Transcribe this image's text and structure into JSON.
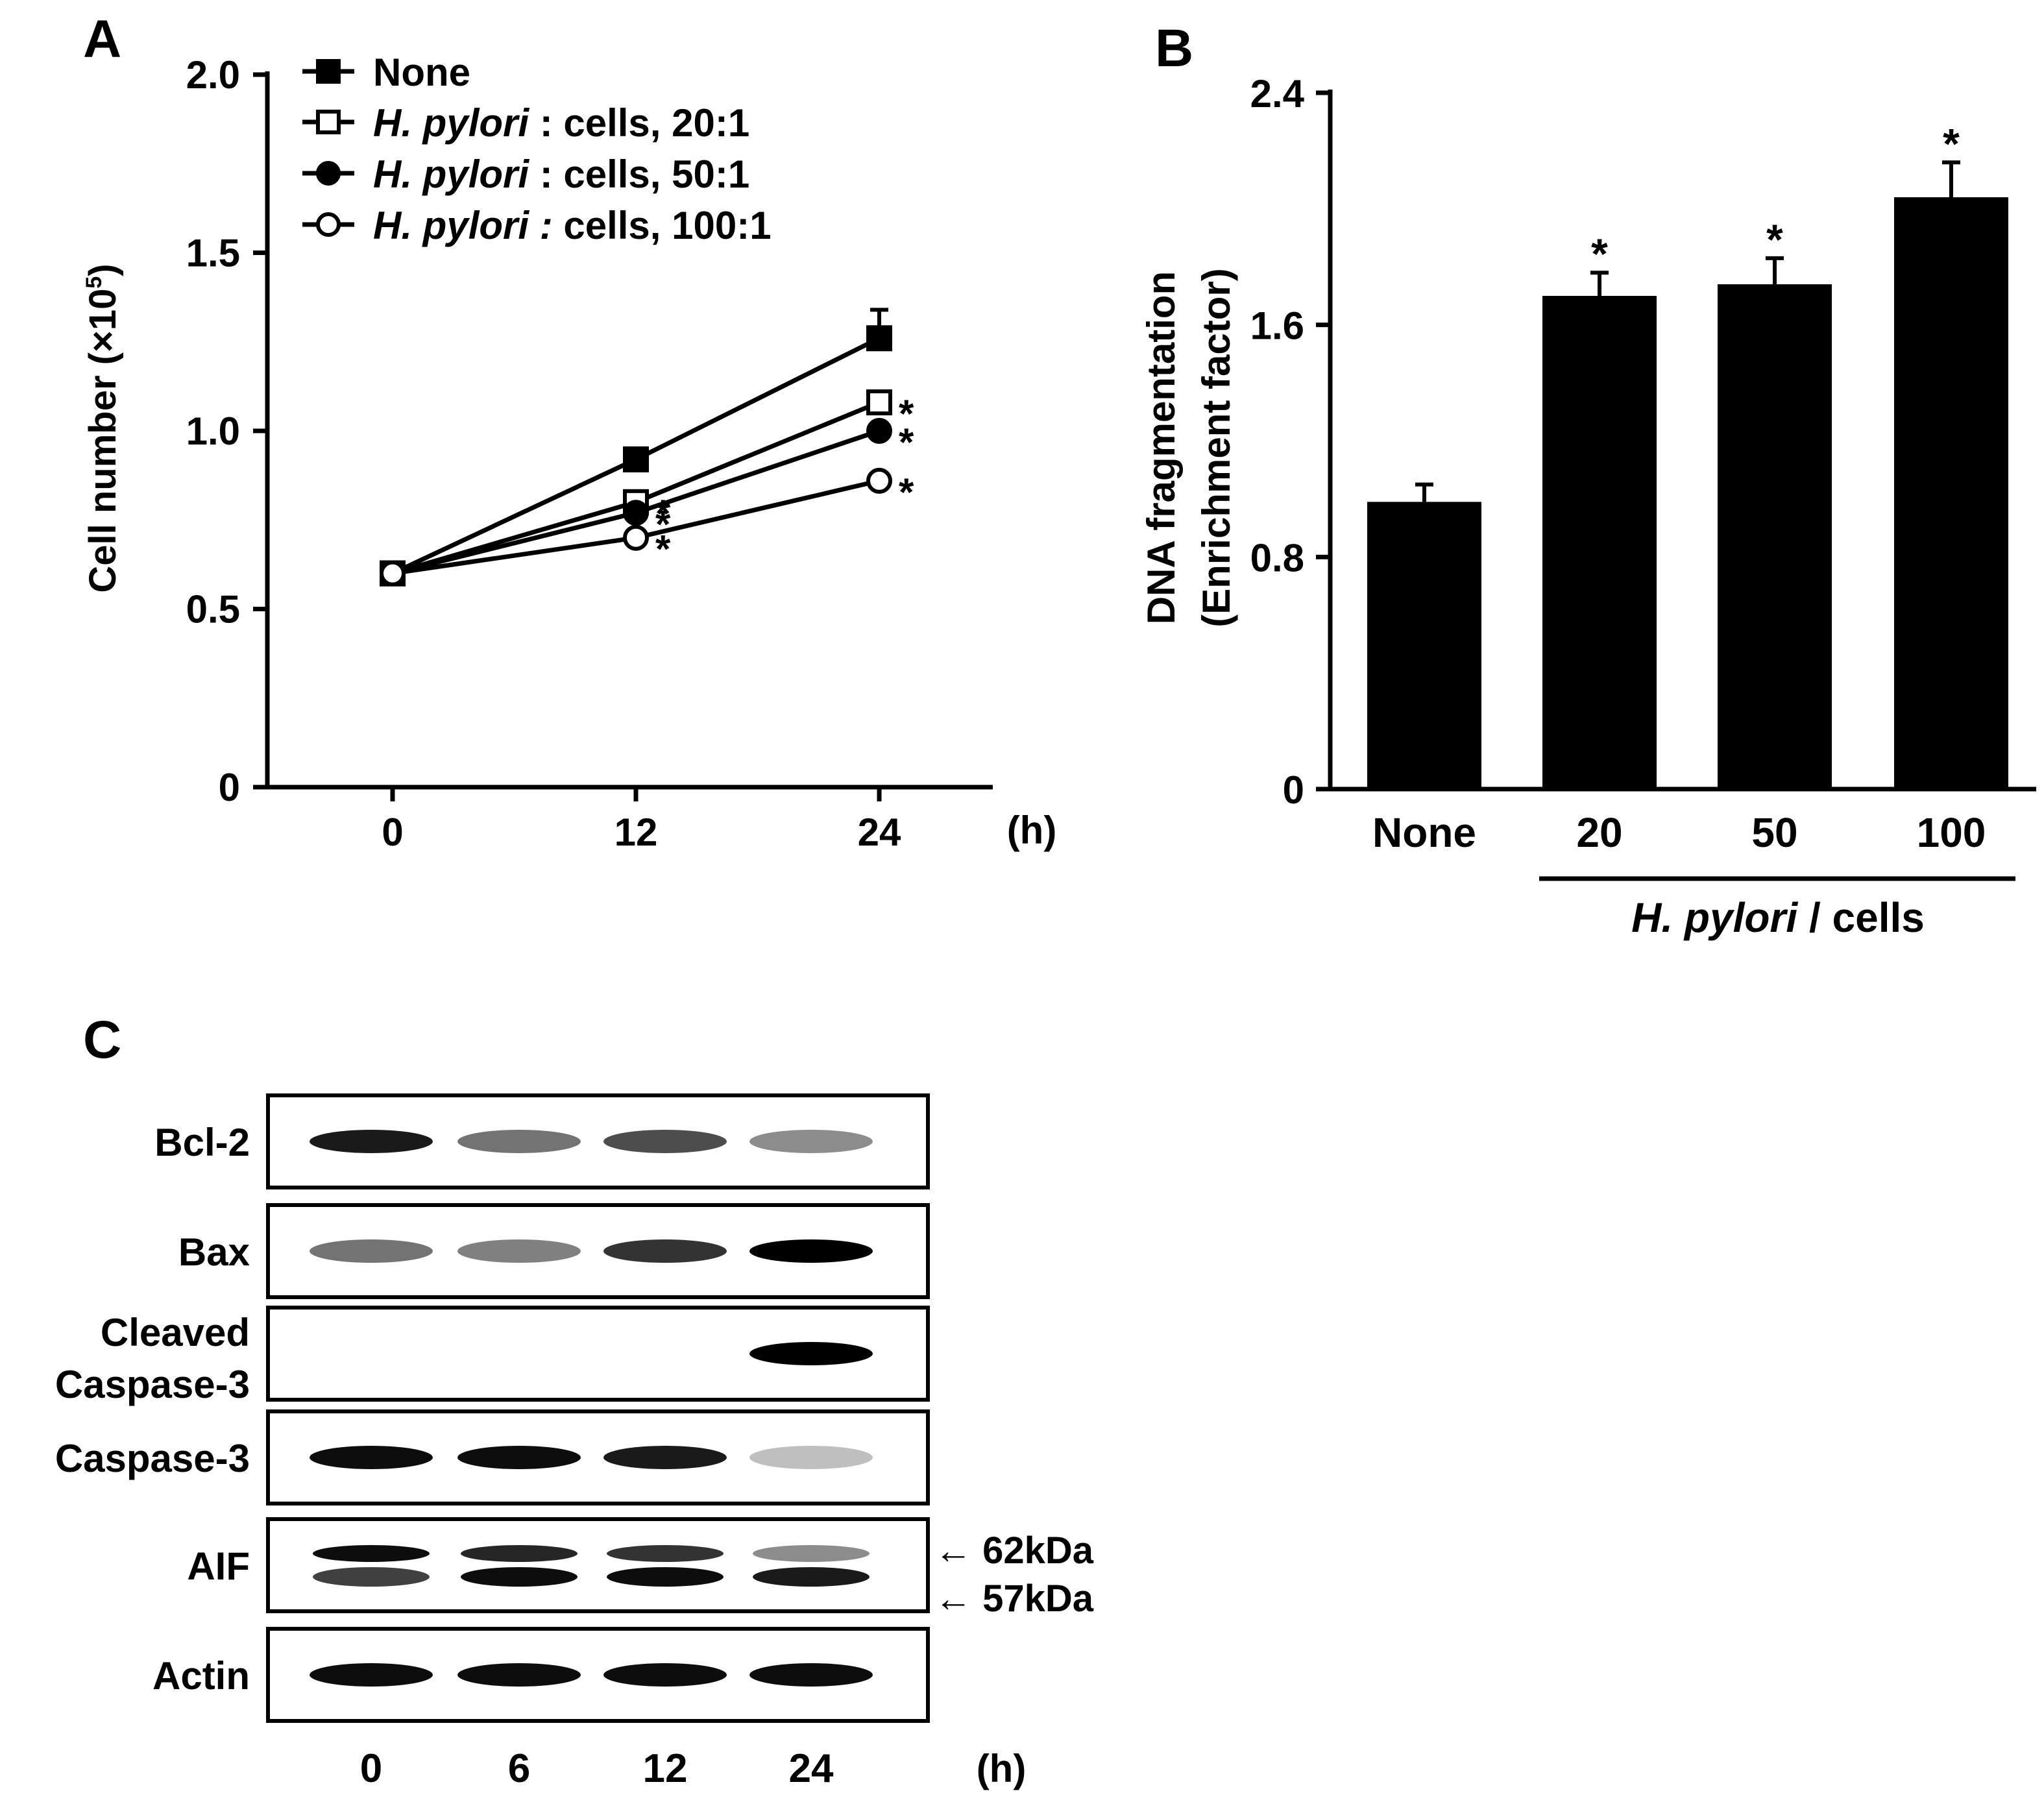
{
  "panels": {
    "a": {
      "letter": "A"
    },
    "b": {
      "letter": "B"
    },
    "c": {
      "letter": "C"
    }
  },
  "chart_data": [
    {
      "id": "panel-a",
      "type": "line",
      "ylabel": "Cell number (×10⁵)",
      "ylabel_main": "Cell number (×10",
      "ylabel_sup": "5",
      "ylabel_tail": ")",
      "x": [
        0,
        12,
        24
      ],
      "x_tick_labels": [
        "0",
        "12",
        "24"
      ],
      "x_unit": "(h)",
      "ylim": [
        0,
        2.0
      ],
      "y_ticks": [
        0,
        0.5,
        1.0,
        1.5,
        2.0
      ],
      "y_tick_labels": [
        "0",
        "0.5",
        "1.0",
        "1.5",
        "2.0"
      ],
      "series": [
        {
          "name": "None",
          "name_italic": "",
          "name_rest": "None",
          "marker": "filled-square",
          "values": [
            0.6,
            0.92,
            1.26
          ],
          "errors": [
            0,
            0,
            0.08
          ],
          "sig": [
            "",
            "",
            ""
          ]
        },
        {
          "name": "H. pylori : cells, 20:1",
          "name_italic": "H. pylori",
          "name_rest": " : cells, 20:1",
          "marker": "open-square",
          "values": [
            0.6,
            0.8,
            1.08
          ],
          "errors": [
            0,
            0,
            0
          ],
          "sig": [
            "",
            "*",
            "*"
          ]
        },
        {
          "name": "H. pylori : cells, 50:1",
          "name_italic": "H. pylori",
          "name_rest": " : cells, 50:1",
          "marker": "filled-circle",
          "values": [
            0.6,
            0.77,
            1.0
          ],
          "errors": [
            0,
            0,
            0
          ],
          "sig": [
            "",
            "*",
            "*"
          ]
        },
        {
          "name": "H. pylori : cells, 100:1",
          "name_italic": "H. pylori :",
          "name_rest": " cells, 100:1",
          "marker": "open-circle",
          "values": [
            0.6,
            0.7,
            0.86
          ],
          "errors": [
            0,
            0,
            0
          ],
          "sig": [
            "",
            "*",
            "*"
          ]
        }
      ]
    },
    {
      "id": "panel-b",
      "type": "bar",
      "ylabel_line1": "DNA fragmentation",
      "ylabel_line2": "(Enrichment factor)",
      "categories": [
        "None",
        "20",
        "50",
        "100"
      ],
      "values": [
        0.99,
        1.7,
        1.74,
        2.04
      ],
      "errors": [
        0.06,
        0.08,
        0.09,
        0.12
      ],
      "sig": [
        "",
        "*",
        "*",
        "*"
      ],
      "ylim": [
        0,
        2.4
      ],
      "y_ticks": [
        0,
        0.8,
        1.6,
        2.4
      ],
      "y_tick_labels": [
        "0",
        "0.8",
        "1.6",
        "2.4"
      ],
      "group_label_italic": "H. pylori",
      "group_label_rest": " / cells"
    },
    {
      "id": "panel-c",
      "type": "western-blot",
      "lanes": [
        "0",
        "6",
        "12",
        "24"
      ],
      "lane_unit": "(h)",
      "rows": [
        {
          "label": "Bcl-2",
          "intensity": [
            0.9,
            0.55,
            0.7,
            0.45
          ]
        },
        {
          "label": "Bax",
          "intensity": [
            0.55,
            0.5,
            0.8,
            1.0
          ]
        },
        {
          "label_line1": "Cleaved",
          "label_line2": "Caspase-3",
          "intensity": [
            0,
            0,
            0,
            1.0
          ]
        },
        {
          "label": "Caspase-3",
          "intensity": [
            0.95,
            0.95,
            0.9,
            0.25
          ]
        },
        {
          "label": "AIF",
          "intensity_upper": [
            0.95,
            0.85,
            0.8,
            0.45
          ],
          "intensity_lower": [
            0.75,
            0.95,
            0.95,
            0.9
          ],
          "markers": [
            "62kDa",
            "57kDa"
          ]
        },
        {
          "label": "Actin",
          "intensity": [
            0.95,
            0.95,
            0.95,
            0.95
          ]
        }
      ]
    }
  ]
}
